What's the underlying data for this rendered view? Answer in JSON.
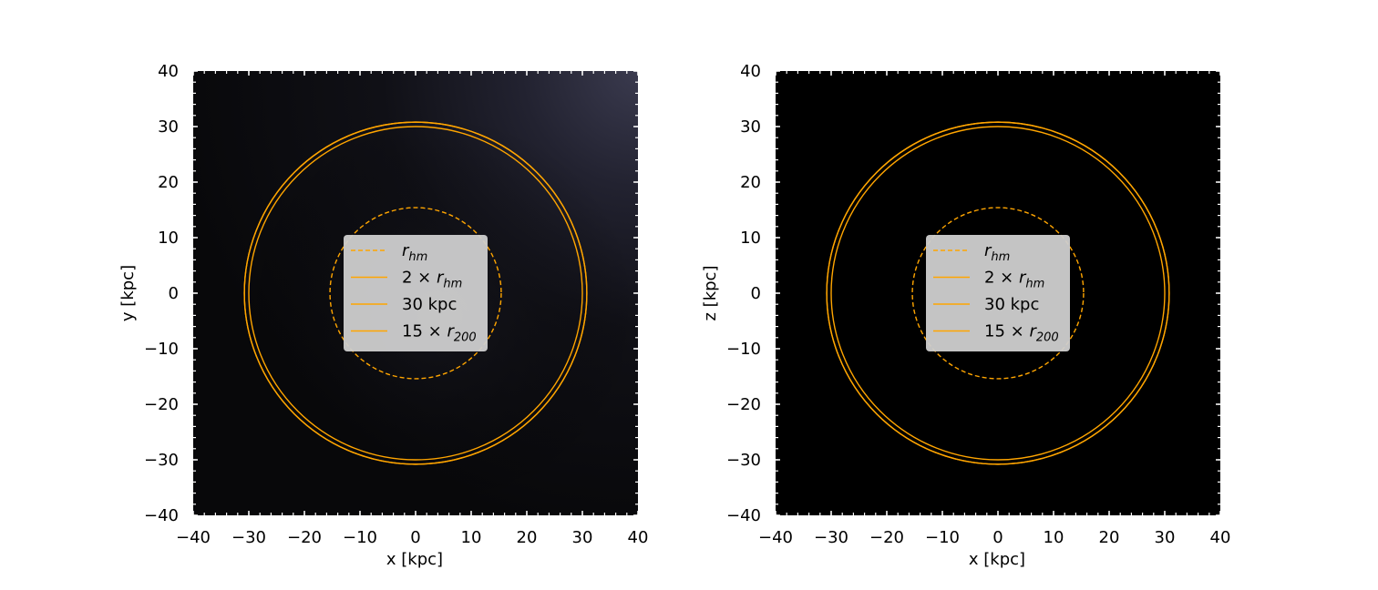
{
  "chart_data": [
    {
      "type": "heatmap",
      "xlabel": "x [kpc]",
      "ylabel": "y [kpc]",
      "xlim": [
        -40,
        40
      ],
      "ylim": [
        -40,
        40
      ],
      "xticks": [
        -40,
        -30,
        -20,
        -10,
        0,
        10,
        20,
        30,
        40
      ],
      "yticks": [
        -40,
        -30,
        -20,
        -10,
        0,
        10,
        20,
        30,
        40
      ],
      "xtick_labels": [
        "−40",
        "−30",
        "−20",
        "−10",
        "0",
        "10",
        "20",
        "30",
        "40"
      ],
      "ytick_labels": [
        "−40",
        "−30",
        "−20",
        "−10",
        "0",
        "10",
        "20",
        "30",
        "40"
      ],
      "background_colormap": "dark-gray-blue",
      "background_has_glow": true,
      "grid": false,
      "legend_position": "center",
      "circles": [
        {
          "label": "r_hm",
          "radius": 15.4,
          "style": "dashed",
          "color": "#ffa500"
        },
        {
          "label": "2 × r_hm",
          "radius": 30.8,
          "style": "solid",
          "color": "#ffa500"
        },
        {
          "label": "30 kpc",
          "radius": 30,
          "style": "solid",
          "color": "#ffa500"
        },
        {
          "label": "15 × r_200",
          "radius": 30.8,
          "style": "solid",
          "color": "#ffa500"
        }
      ]
    },
    {
      "type": "heatmap",
      "xlabel": "x [kpc]",
      "ylabel": "z [kpc]",
      "xlim": [
        -40,
        40
      ],
      "ylim": [
        -40,
        40
      ],
      "xticks": [
        -40,
        -30,
        -20,
        -10,
        0,
        10,
        20,
        30,
        40
      ],
      "yticks": [
        -40,
        -30,
        -20,
        -10,
        0,
        10,
        20,
        30,
        40
      ],
      "xtick_labels": [
        "−40",
        "−30",
        "−20",
        "−10",
        "0",
        "10",
        "20",
        "30",
        "40"
      ],
      "ytick_labels": [
        "−40",
        "−30",
        "−20",
        "−10",
        "0",
        "10",
        "20",
        "30",
        "40"
      ],
      "background_colormap": "black",
      "background_has_glow": false,
      "grid": false,
      "legend_position": "center",
      "circles": [
        {
          "label": "r_hm",
          "radius": 15.4,
          "style": "dashed",
          "color": "#ffa500"
        },
        {
          "label": "2 × r_hm",
          "radius": 30.8,
          "style": "solid",
          "color": "#ffa500"
        },
        {
          "label": "30 kpc",
          "radius": 30,
          "style": "solid",
          "color": "#ffa500"
        },
        {
          "label": "15 × r_200",
          "radius": 30.8,
          "style": "solid",
          "color": "#ffa500"
        }
      ]
    }
  ],
  "legend": {
    "r_hm_symbol": "r",
    "r_hm_sub": "hm",
    "two_prefix": "2 × ",
    "two_symbol": "r",
    "two_sub": "hm",
    "thirty": "30 kpc",
    "fifteen_prefix": "15 × ",
    "fifteen_symbol": "r",
    "fifteen_sub": "200"
  }
}
